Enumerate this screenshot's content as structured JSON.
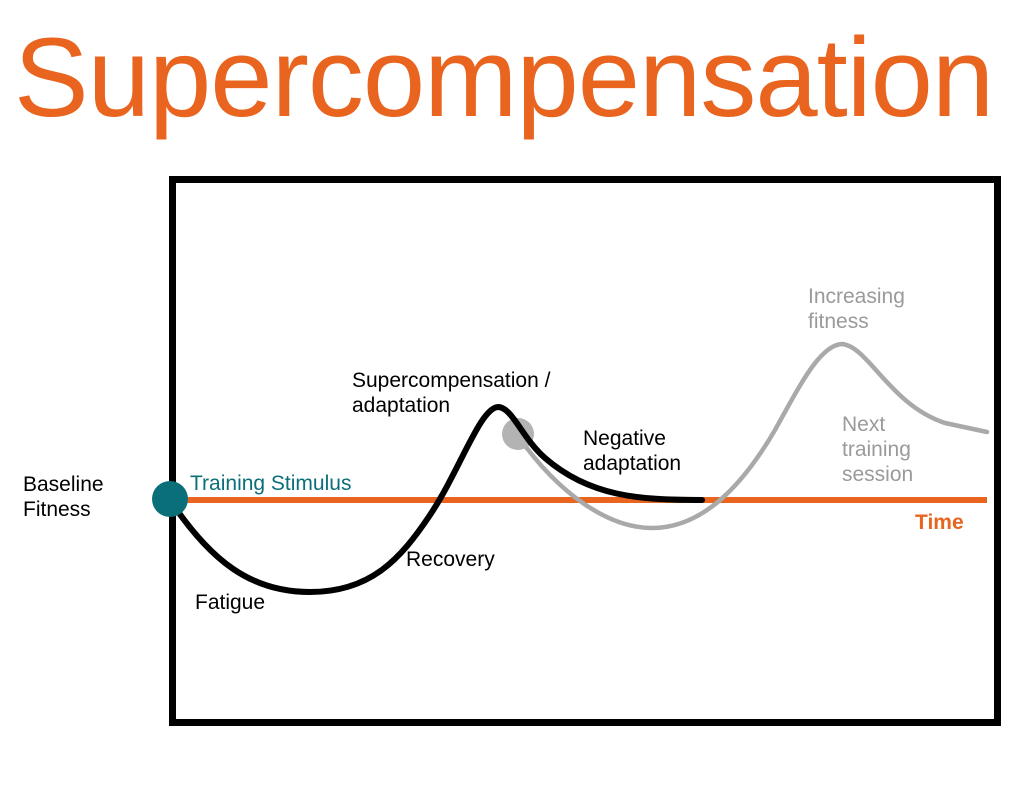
{
  "title": "Supercompensation",
  "colors": {
    "title": "#e8641f",
    "baseline_line": "#e8641f",
    "training_stimulus": "#0b6f7a",
    "current_cycle_curve": "#000000",
    "next_cycle_curve": "#a9a9a9",
    "frame": "#000000"
  },
  "labels": {
    "baseline_line1": "Baseline",
    "baseline_line2": "Fitness",
    "training_stimulus": "Training Stimulus",
    "fatigue": "Fatigue",
    "recovery": "Recovery",
    "supercompensation_line1": "Supercompensation /",
    "supercompensation_line2": "adaptation",
    "negative_line1": "Negative",
    "negative_line2": "adaptation",
    "increasing_line1": "Increasing",
    "increasing_line2": "fitness",
    "next_line1": "Next",
    "next_line2": "training",
    "next_line3": "session",
    "time_axis": "Time"
  }
}
